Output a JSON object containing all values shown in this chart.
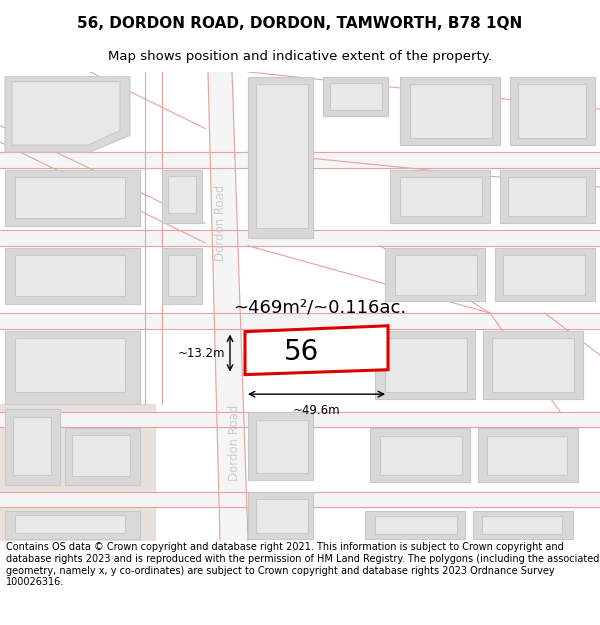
{
  "title": "56, DORDON ROAD, DORDON, TAMWORTH, B78 1QN",
  "subtitle": "Map shows position and indicative extent of the property.",
  "footer": "Contains OS data © Crown copyright and database right 2021. This information is subject to Crown copyright and database rights 2023 and is reproduced with the permission of HM Land Registry. The polygons (including the associated geometry, namely x, y co-ordinates) are subject to Crown copyright and database rights 2023 Ordnance Survey 100026316.",
  "bg_color": "#ffffff",
  "map_bg": "#f2eeec",
  "road_color": "#f5f5f5",
  "road_border_color": "#e8a0a0",
  "building_color": "#d8d8d8",
  "building_border_color": "#c8c8c8",
  "highlight_color": "#dd0000",
  "highlight_fill": "#ffffff",
  "road_label_color": "#cccccc",
  "area_text": "~469m²/~0.116ac.",
  "width_text": "~49.6m",
  "height_text": "~13.2m",
  "plot_number": "56",
  "title_fontsize": 11,
  "subtitle_fontsize": 9.5
}
